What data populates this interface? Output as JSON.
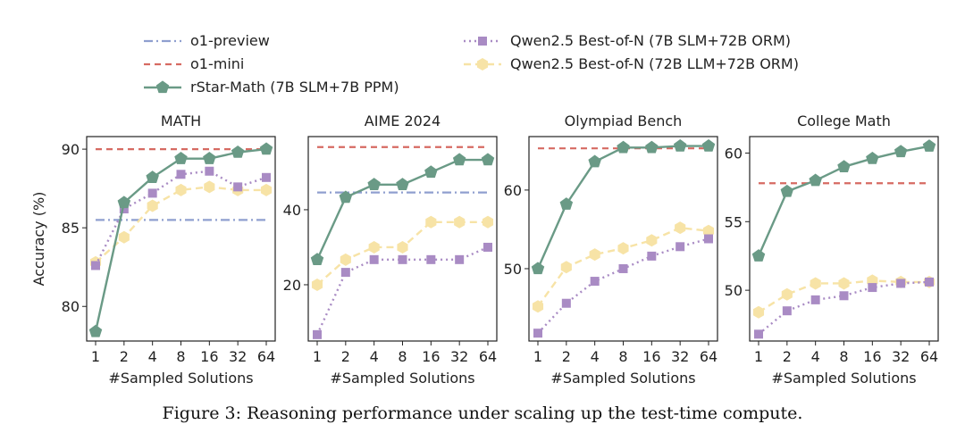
{
  "legend": {
    "items": [
      {
        "key": "o1_preview",
        "label": "o1-preview",
        "color": "#8f9fcf",
        "style": "dashdot",
        "marker": "none"
      },
      {
        "key": "o1_mini",
        "label": "o1-mini",
        "color": "#d66a62",
        "style": "dashed",
        "marker": "none"
      },
      {
        "key": "rstar",
        "label": "rStar-Math (7B SLM+7B PPM)",
        "color": "#6a9a86",
        "style": "solid",
        "marker": "pentagon"
      },
      {
        "key": "qwen_slm",
        "label": "Qwen2.5 Best-of-N (7B SLM+72B ORM)",
        "color": "#a98bc4",
        "style": "dotted",
        "marker": "square"
      },
      {
        "key": "qwen_llm",
        "label": "Qwen2.5 Best-of-N (72B LLM+72B ORM)",
        "color": "#f7e3a6",
        "style": "dashed",
        "marker": "hexagon"
      }
    ]
  },
  "shared": {
    "xlabel": "#Sampled Solutions",
    "ylabel": "Accuracy (%)",
    "x": [
      "1",
      "2",
      "4",
      "8",
      "16",
      "32",
      "64"
    ]
  },
  "chart_data": [
    {
      "type": "line",
      "title": "MATH",
      "xlabel": "#Sampled Solutions",
      "ylabel": "Accuracy (%)",
      "categories": [
        "1",
        "2",
        "4",
        "8",
        "16",
        "32",
        "64"
      ],
      "ylim": [
        77.8,
        90.8
      ],
      "yticks": [
        80,
        85,
        90
      ],
      "series": [
        {
          "name": "o1-preview",
          "key": "o1_preview",
          "type": "hline",
          "value": 85.5
        },
        {
          "name": "o1-mini",
          "key": "o1_mini",
          "type": "hline",
          "value": 90.0
        },
        {
          "name": "rStar-Math (7B SLM+7B PPM)",
          "key": "rstar",
          "values": [
            78.4,
            86.6,
            88.2,
            89.4,
            89.4,
            89.8,
            90.0
          ]
        },
        {
          "name": "Qwen2.5 Best-of-N (7B SLM+72B ORM)",
          "key": "qwen_slm",
          "values": [
            82.6,
            86.2,
            87.2,
            88.4,
            88.6,
            87.6,
            88.2
          ]
        },
        {
          "name": "Qwen2.5 Best-of-N (72B LLM+72B ORM)",
          "key": "qwen_llm",
          "values": [
            82.8,
            84.4,
            86.4,
            87.4,
            87.6,
            87.4,
            87.4
          ]
        }
      ]
    },
    {
      "type": "line",
      "title": "AIME 2024",
      "xlabel": "#Sampled Solutions",
      "ylabel": "",
      "categories": [
        "1",
        "2",
        "4",
        "8",
        "16",
        "32",
        "64"
      ],
      "ylim": [
        5,
        59.5
      ],
      "yticks": [
        20,
        40
      ],
      "series": [
        {
          "name": "o1-preview",
          "key": "o1_preview",
          "type": "hline",
          "value": 44.6
        },
        {
          "name": "o1-mini",
          "key": "o1_mini",
          "type": "hline",
          "value": 56.7
        },
        {
          "name": "rStar-Math (7B SLM+7B PPM)",
          "key": "rstar",
          "values": [
            26.7,
            43.3,
            46.7,
            46.7,
            50.0,
            53.3,
            53.3
          ]
        },
        {
          "name": "Qwen2.5 Best-of-N (7B SLM+72B ORM)",
          "key": "qwen_slm",
          "values": [
            6.7,
            23.3,
            26.7,
            26.7,
            26.7,
            26.7,
            30.0
          ]
        },
        {
          "name": "Qwen2.5 Best-of-N (72B LLM+72B ORM)",
          "key": "qwen_llm",
          "values": [
            20.0,
            26.7,
            30.0,
            30.0,
            36.7,
            36.7,
            36.7
          ]
        }
      ]
    },
    {
      "type": "line",
      "title": "Olympiad Bench",
      "xlabel": "#Sampled Solutions",
      "ylabel": "",
      "categories": [
        "1",
        "2",
        "4",
        "8",
        "16",
        "32",
        "64"
      ],
      "ylim": [
        40.8,
        66.8
      ],
      "yticks": [
        50,
        60
      ],
      "series": [
        {
          "name": "o1-mini",
          "key": "o1_mini",
          "type": "hline",
          "value": 65.3
        },
        {
          "name": "rStar-Math (7B SLM+7B PPM)",
          "key": "rstar",
          "values": [
            50.0,
            58.2,
            63.6,
            65.4,
            65.4,
            65.6,
            65.6
          ]
        },
        {
          "name": "Qwen2.5 Best-of-N (7B SLM+72B ORM)",
          "key": "qwen_slm",
          "values": [
            41.8,
            45.6,
            48.4,
            50.0,
            51.6,
            52.8,
            53.8
          ]
        },
        {
          "name": "Qwen2.5 Best-of-N (72B LLM+72B ORM)",
          "key": "qwen_llm",
          "values": [
            45.2,
            50.2,
            51.8,
            52.6,
            53.6,
            55.2,
            54.8
          ]
        }
      ]
    },
    {
      "type": "line",
      "title": "College Math",
      "xlabel": "#Sampled Solutions",
      "ylabel": "",
      "categories": [
        "1",
        "2",
        "4",
        "8",
        "16",
        "32",
        "64"
      ],
      "ylim": [
        46.3,
        61.2
      ],
      "yticks": [
        50,
        55,
        60
      ],
      "series": [
        {
          "name": "o1-mini",
          "key": "o1_mini",
          "type": "hline",
          "value": 57.8
        },
        {
          "name": "rStar-Math (7B SLM+7B PPM)",
          "key": "rstar",
          "values": [
            52.5,
            57.2,
            58.0,
            59.0,
            59.6,
            60.1,
            60.5
          ]
        },
        {
          "name": "Qwen2.5 Best-of-N (7B SLM+72B ORM)",
          "key": "qwen_slm",
          "values": [
            46.8,
            48.5,
            49.3,
            49.6,
            50.2,
            50.5,
            50.6
          ]
        },
        {
          "name": "Qwen2.5 Best-of-N (72B LLM+72B ORM)",
          "key": "qwen_llm",
          "values": [
            48.4,
            49.7,
            50.5,
            50.5,
            50.7,
            50.6,
            50.6
          ]
        }
      ]
    }
  ],
  "caption": "Figure 3: Reasoning performance under scaling up the test-time compute."
}
